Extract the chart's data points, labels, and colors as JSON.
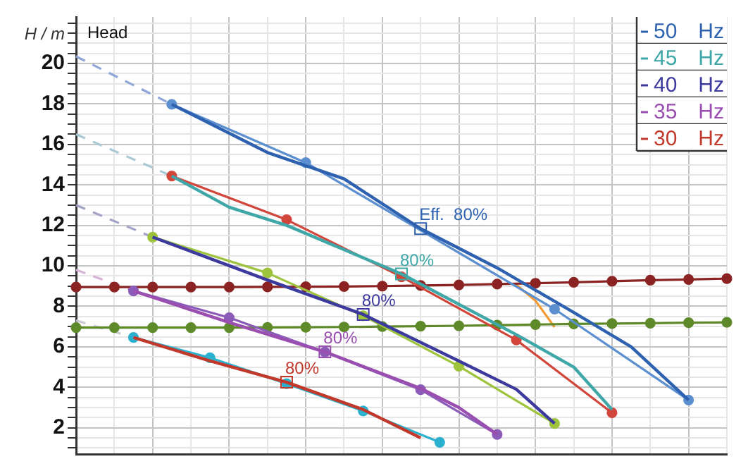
{
  "chart_data": {
    "type": "line",
    "title": "Head",
    "ylabel": "H / m",
    "legend": "top right",
    "tick_labels": "y",
    "grid": true,
    "categories": [
      null,
      null,
      null,
      null,
      null,
      null,
      null,
      null,
      null,
      null,
      null,
      null,
      null,
      null,
      null,
      null,
      null,
      null,
      null,
      null,
      null,
      null,
      null,
      null,
      null,
      null,
      null,
      null,
      null,
      null,
      null,
      null,
      null,
      null,
      null
    ],
    "ylim": [
      0.7,
      22.3
    ],
    "yticks": [
      {
        "value": 1,
        "label": null
      },
      {
        "value": 1.5,
        "label": null
      },
      2,
      {
        "value": 2.5,
        "label": null
      },
      {
        "value": 3,
        "label": null
      },
      {
        "value": 3.5,
        "label": null
      },
      4,
      {
        "value": 4.5,
        "label": null
      },
      {
        "value": 5,
        "label": null
      },
      {
        "value": 5.5,
        "label": null
      },
      6,
      {
        "value": 6.5,
        "label": null
      },
      {
        "value": 7,
        "label": null
      },
      {
        "value": 7.5,
        "label": null
      },
      8,
      {
        "value": 8.5,
        "label": null
      },
      {
        "value": 9,
        "label": null
      },
      {
        "value": 9.5,
        "label": null
      },
      10,
      {
        "value": 10.5,
        "label": null
      },
      {
        "value": 11,
        "label": null
      },
      {
        "value": 11.5,
        "label": null
      },
      12,
      {
        "value": 12.5,
        "label": null
      },
      {
        "value": 13,
        "label": null
      },
      {
        "value": 13.5,
        "label": null
      },
      14,
      {
        "value": 14.5,
        "label": null
      },
      {
        "value": 15,
        "label": null
      },
      {
        "value": 15.5,
        "label": null
      },
      16,
      {
        "value": 16.5,
        "label": null
      },
      {
        "value": 17,
        "label": null
      },
      {
        "value": 17.5,
        "label": null
      },
      18,
      {
        "value": 18.5,
        "label": null
      },
      {
        "value": 19,
        "label": null
      },
      {
        "value": 19.5,
        "label": null
      },
      20,
      {
        "value": 20.5,
        "label": null
      },
      {
        "value": 21,
        "label": null
      },
      {
        "value": 21.5,
        "label": null
      },
      {
        "value": 22,
        "label": null
      }
    ],
    "series": [
      {
        "name": "50 Hz",
        "color": "#2e62b0",
        "marker": "none",
        "values": [
          null,
          null,
          null,
          null,
          null,
          17.98,
          null,
          null,
          null,
          null,
          15.6,
          null,
          null,
          null,
          14.3,
          null,
          null,
          null,
          11.84,
          null,
          null,
          null,
          9.9,
          null,
          null,
          null,
          7.7,
          null,
          null,
          6.0,
          null,
          null,
          3.37,
          null,
          null
        ]
      },
      {
        "color": "#5b8fd0",
        "marker": "circle",
        "values": [
          null,
          null,
          null,
          null,
          null,
          17.98,
          null,
          null,
          null,
          null,
          null,
          null,
          15.1,
          null,
          null,
          null,
          null,
          null,
          null,
          null,
          null,
          null,
          null,
          null,
          null,
          7.86,
          null,
          null,
          null,
          null,
          null,
          null,
          3.37,
          null,
          null
        ]
      },
      {
        "name": "45 Hz",
        "color": "#3fa7a8",
        "marker": "none",
        "values": [
          null,
          null,
          null,
          null,
          null,
          14.44,
          null,
          null,
          12.9,
          null,
          null,
          12.0,
          null,
          null,
          null,
          null,
          null,
          9.6,
          null,
          null,
          null,
          null,
          null,
          6.6,
          null,
          null,
          5.0,
          null,
          2.9,
          null,
          null,
          null,
          null,
          null,
          null
        ]
      },
      {
        "color": "#d2453a",
        "marker": "circle",
        "values": [
          null,
          null,
          null,
          null,
          null,
          14.44,
          null,
          null,
          null,
          null,
          null,
          12.28,
          null,
          null,
          null,
          null,
          null,
          9.46,
          null,
          null,
          null,
          null,
          null,
          6.34,
          null,
          null,
          null,
          null,
          2.74,
          null,
          null,
          null,
          null,
          null,
          null
        ]
      },
      {
        "name": "40 Hz",
        "color": "#3d3a9e",
        "marker": "none",
        "values": [
          null,
          null,
          null,
          null,
          11.42,
          null,
          null,
          null,
          null,
          null,
          9.3,
          null,
          null,
          null,
          null,
          7.6,
          null,
          null,
          null,
          null,
          5.3,
          null,
          null,
          3.9,
          null,
          2.21,
          null,
          null,
          null,
          null,
          null,
          null,
          null,
          null,
          null
        ]
      },
      {
        "color": "#9dc43c",
        "marker": "circle",
        "values": [
          null,
          null,
          null,
          null,
          11.42,
          null,
          null,
          null,
          null,
          null,
          9.65,
          null,
          null,
          null,
          null,
          7.53,
          null,
          null,
          null,
          null,
          5.04,
          null,
          null,
          null,
          null,
          2.21,
          null,
          null,
          null,
          null,
          null,
          null,
          null,
          null,
          null
        ]
      },
      {
        "name": "35 Hz",
        "color": "#9a4fb0",
        "marker": "none",
        "values": [
          null,
          null,
          null,
          8.76,
          null,
          null,
          null,
          null,
          7.2,
          null,
          null,
          null,
          null,
          5.75,
          null,
          null,
          null,
          null,
          3.95,
          null,
          3.0,
          null,
          1.67,
          null,
          null,
          null,
          null,
          null,
          null,
          null,
          null,
          null,
          null,
          null,
          null
        ]
      },
      {
        "color": "#8a5bb8",
        "marker": "circle",
        "values": [
          null,
          null,
          null,
          8.76,
          null,
          null,
          null,
          null,
          7.44,
          null,
          null,
          null,
          null,
          5.74,
          null,
          null,
          null,
          null,
          3.88,
          null,
          null,
          null,
          1.67,
          null,
          null,
          null,
          null,
          null,
          null,
          null,
          null,
          null,
          null,
          null,
          null
        ]
      },
      {
        "name": "30 Hz",
        "color": "#c0392b",
        "marker": "none",
        "values": [
          null,
          null,
          null,
          6.46,
          null,
          null,
          null,
          5.3,
          null,
          null,
          null,
          4.25,
          null,
          null,
          null,
          2.9,
          null,
          null,
          1.5,
          null,
          null,
          null,
          null,
          null,
          null,
          null,
          null,
          null,
          null,
          null,
          null,
          null,
          null,
          null,
          null
        ]
      },
      {
        "color": "#2bb0cf",
        "marker": "circle",
        "values": [
          null,
          null,
          null,
          6.46,
          null,
          null,
          null,
          5.46,
          null,
          null,
          null,
          4.18,
          null,
          null,
          null,
          2.83,
          null,
          null,
          null,
          1.28,
          null,
          null,
          null,
          null,
          null,
          null,
          null,
          null,
          null,
          null,
          null,
          null,
          null,
          null,
          null
        ]
      },
      {
        "color": "#8b2323",
        "marker": "circle",
        "values": [
          8.95,
          null,
          8.95,
          null,
          8.95,
          null,
          8.95,
          null,
          8.95,
          null,
          8.96,
          null,
          8.97,
          null,
          8.98,
          null,
          9.0,
          null,
          9.03,
          null,
          9.06,
          null,
          9.1,
          null,
          9.14,
          null,
          9.19,
          null,
          9.24,
          null,
          9.29,
          null,
          9.33,
          null,
          9.37
        ]
      },
      {
        "color": "#5e8a2a",
        "marker": "circle",
        "values": [
          6.95,
          null,
          6.95,
          null,
          6.95,
          null,
          6.95,
          null,
          6.95,
          null,
          6.96,
          null,
          6.97,
          null,
          6.98,
          null,
          7.0,
          null,
          7.02,
          null,
          7.04,
          null,
          7.07,
          null,
          7.1,
          null,
          7.13,
          null,
          7.15,
          null,
          7.17,
          null,
          7.19,
          null,
          7.21
        ]
      },
      {
        "color": "#f39a32",
        "marker": "none",
        "values": [
          null,
          null,
          null,
          null,
          null,
          null,
          null,
          null,
          null,
          null,
          null,
          null,
          null,
          null,
          null,
          null,
          null,
          null,
          null,
          null,
          null,
          null,
          null,
          9.07,
          8.28,
          6.97,
          null,
          null,
          null,
          null,
          null,
          null,
          null,
          null,
          null
        ]
      },
      {
        "color": "#8fa6d6",
        "marker": "none",
        "line_style": "dashed",
        "values": [
          20.35,
          null,
          null,
          null,
          null,
          17.98,
          null,
          null,
          null,
          null,
          null,
          null,
          null,
          null,
          null,
          null,
          null,
          null,
          null,
          null,
          null,
          null,
          null,
          null,
          null,
          null,
          null,
          null,
          null,
          null,
          null,
          null,
          null,
          null,
          null
        ]
      },
      {
        "color": "#a9c9d6",
        "marker": "none",
        "line_style": "dashed",
        "values": [
          16.5,
          null,
          null,
          null,
          null,
          14.44,
          null,
          null,
          null,
          null,
          null,
          null,
          null,
          null,
          null,
          null,
          null,
          null,
          null,
          null,
          null,
          null,
          null,
          null,
          null,
          null,
          null,
          null,
          null,
          null,
          null,
          null,
          null,
          null,
          null
        ]
      },
      {
        "color": "#a3a3c9",
        "marker": "none",
        "line_style": "dashed",
        "values": [
          13.0,
          null,
          null,
          null,
          11.42,
          null,
          null,
          null,
          null,
          null,
          null,
          null,
          null,
          null,
          null,
          null,
          null,
          null,
          null,
          null,
          null,
          null,
          null,
          null,
          null,
          null,
          null,
          null,
          null,
          null,
          null,
          null,
          null,
          null,
          null
        ]
      },
      {
        "color": "#d6b3d6",
        "marker": "none",
        "line_style": "dashed",
        "values": [
          9.8,
          null,
          null,
          8.76,
          null,
          null,
          null,
          null,
          null,
          null,
          null,
          null,
          null,
          null,
          null,
          null,
          null,
          null,
          null,
          null,
          null,
          null,
          null,
          null,
          null,
          null,
          null,
          null,
          null,
          null,
          null,
          null,
          null,
          null,
          null
        ]
      },
      {
        "color": "#c9c9d6",
        "marker": "none",
        "line_style": "dashed",
        "values": [
          7.3,
          null,
          null,
          6.46,
          null,
          null,
          null,
          null,
          null,
          null,
          null,
          null,
          null,
          null,
          null,
          null,
          null,
          null,
          null,
          null,
          null,
          null,
          null,
          null,
          null,
          null,
          null,
          null,
          null,
          null,
          null,
          null,
          null,
          null,
          null
        ]
      }
    ],
    "annotations": [
      "Eff.  80%",
      "80%",
      "80%",
      "80%",
      "80%"
    ]
  }
}
